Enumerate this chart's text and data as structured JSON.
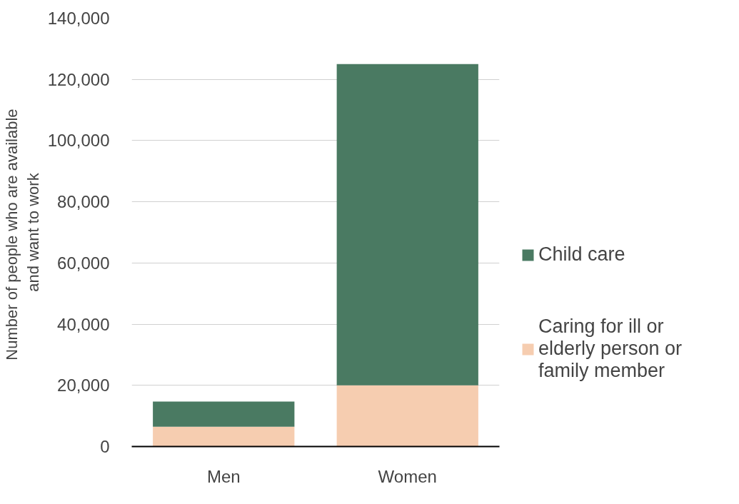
{
  "chart_data": {
    "type": "bar",
    "stacked": true,
    "categories": [
      "Men",
      "Women"
    ],
    "ylabel": "Number of people  who are available and want to work",
    "series": [
      {
        "name": "Caring for ill or elderly person or family member",
        "color": "#f6cdb0",
        "values": [
          6500,
          20000
        ]
      },
      {
        "name": "Child care",
        "color": "#4a7a62",
        "values": [
          8200,
          105000
        ]
      }
    ],
    "ylim": [
      0,
      140000
    ],
    "yticks": [
      {
        "value": 0,
        "label": "0"
      },
      {
        "value": 20000,
        "label": "20,000"
      },
      {
        "value": 40000,
        "label": "40,000"
      },
      {
        "value": 60000,
        "label": "60,000"
      },
      {
        "value": 80000,
        "label": "80,000"
      },
      {
        "value": 100000,
        "label": "100,000"
      },
      {
        "value": 120000,
        "label": "120,000"
      },
      {
        "value": 140000,
        "label": "140,000"
      }
    ],
    "grid": "y",
    "legend": "right"
  }
}
